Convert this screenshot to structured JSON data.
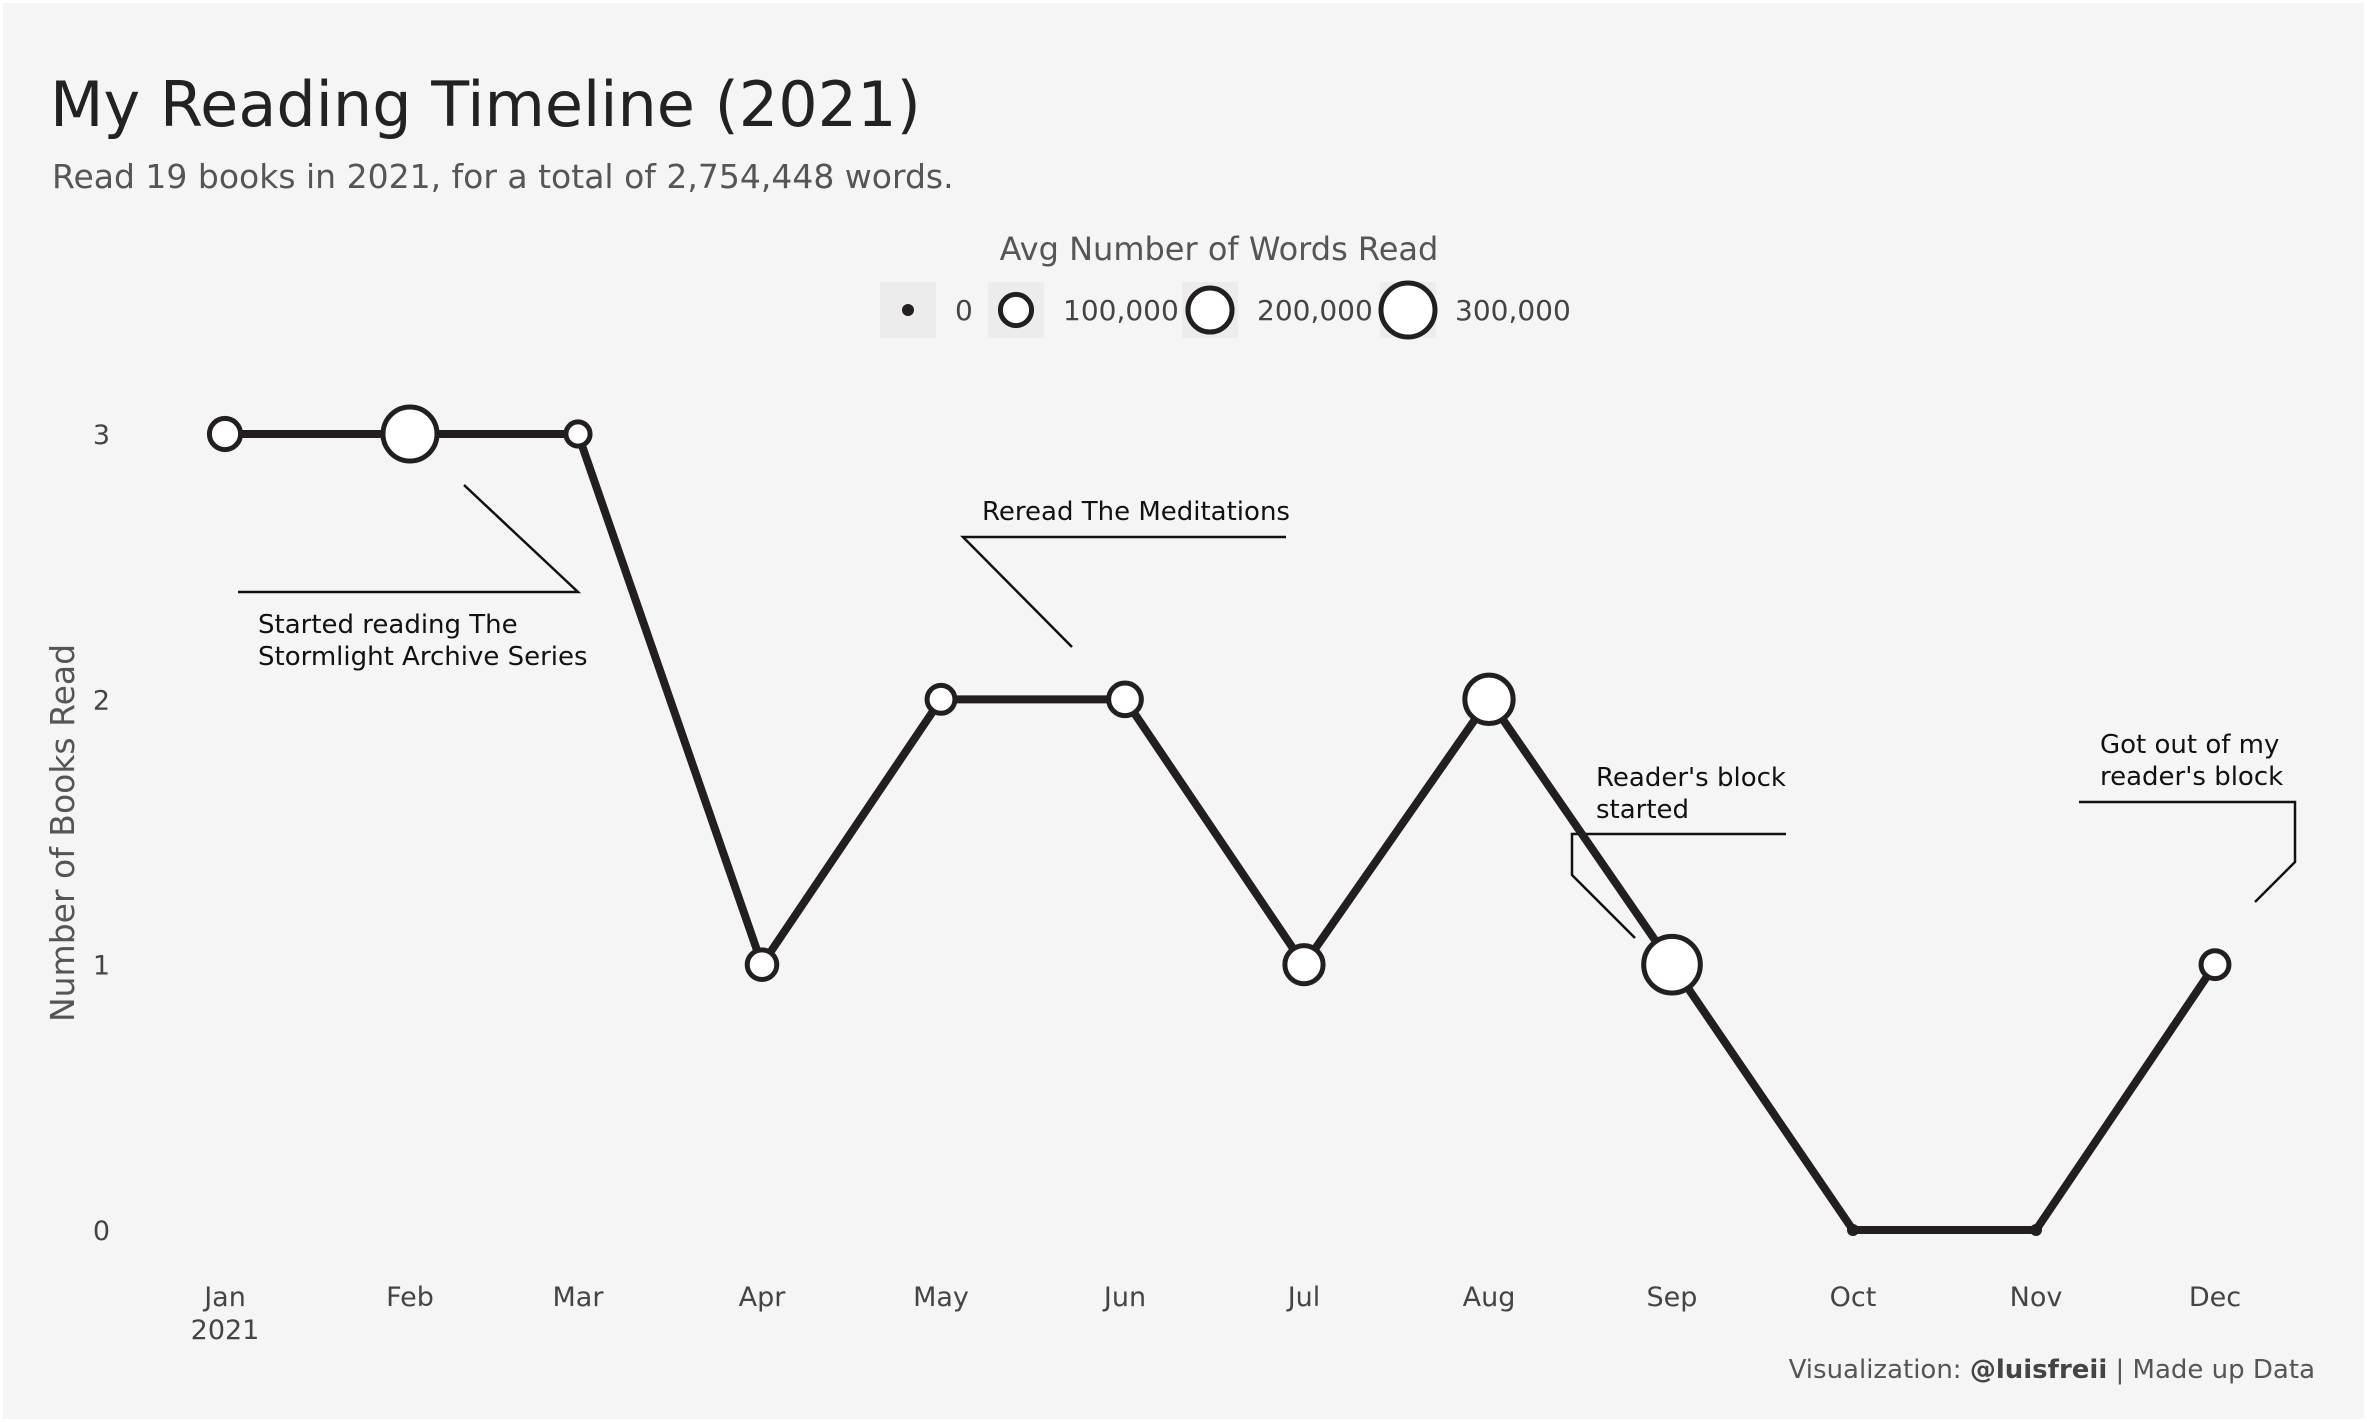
{
  "title": "My Reading Timeline (2021)",
  "subtitle": "Read 19 books in 2021, for a total of 2,754,448 words.",
  "caption": {
    "prefix": "Visualization: ",
    "author": "@luisfreii",
    "suffix": " | Made up Data"
  },
  "chart_data": {
    "type": "line",
    "ylabel": "Number of Books Read",
    "xlabel": "",
    "x": [
      "Jan",
      "Feb",
      "Mar",
      "Apr",
      "May",
      "Jun",
      "Jul",
      "Aug",
      "Sep",
      "Oct",
      "Nov",
      "Dec"
    ],
    "x_tick_labels": [
      [
        "Jan",
        "2021"
      ],
      [
        "Feb"
      ],
      [
        "Mar"
      ],
      [
        "Apr"
      ],
      [
        "May"
      ],
      [
        "Jun"
      ],
      [
        "Jul"
      ],
      [
        "Aug"
      ],
      [
        "Sep"
      ],
      [
        "Oct"
      ],
      [
        "Nov"
      ],
      [
        "Dec"
      ]
    ],
    "books_read": [
      3,
      3,
      3,
      1,
      2,
      2,
      1,
      2,
      1,
      0,
      0,
      1
    ],
    "avg_words_read": [
      100000,
      300000,
      60000,
      90000,
      80000,
      110000,
      150000,
      240000,
      330000,
      0,
      0,
      80000
    ],
    "ylim": [
      0,
      3
    ],
    "y_ticks": [
      0,
      1,
      2,
      3
    ],
    "grid": false,
    "size_legend": {
      "title": "Avg Number of Words Read",
      "placement": "top-center",
      "entries": [
        {
          "label": "0",
          "value": 0
        },
        {
          "label": "100,000",
          "value": 100000
        },
        {
          "label": "200,000",
          "value": 200000
        },
        {
          "label": "300,000",
          "value": 300000
        }
      ]
    },
    "annotations": [
      {
        "lines": [
          "Started reading The",
          "Stormlight Archive Series"
        ],
        "target": "Feb"
      },
      {
        "lines": [
          "Reread The Meditations"
        ],
        "target": "Jun"
      },
      {
        "lines": [
          "Reader's block",
          "started"
        ],
        "target": "Sep"
      },
      {
        "lines": [
          "Got out of my",
          "reader's block"
        ],
        "target": "Dec"
      }
    ],
    "colors": {
      "line": "#231f20",
      "marker_fill": "#ffffff",
      "background": "#f5f5f5"
    }
  }
}
